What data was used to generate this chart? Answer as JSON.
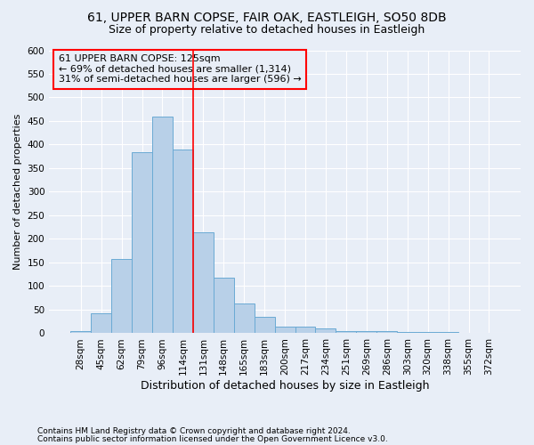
{
  "title": "61, UPPER BARN COPSE, FAIR OAK, EASTLEIGH, SO50 8DB",
  "subtitle": "Size of property relative to detached houses in Eastleigh",
  "xlabel": "Distribution of detached houses by size in Eastleigh",
  "ylabel": "Number of detached properties",
  "footnote1": "Contains HM Land Registry data © Crown copyright and database right 2024.",
  "footnote2": "Contains public sector information licensed under the Open Government Licence v3.0.",
  "annotation_line1": "61 UPPER BARN COPSE: 125sqm",
  "annotation_line2": "← 69% of detached houses are smaller (1,314)",
  "annotation_line3": "31% of semi-detached houses are larger (596) →",
  "bar_categories": [
    "28sqm",
    "45sqm",
    "62sqm",
    "79sqm",
    "96sqm",
    "114sqm",
    "131sqm",
    "148sqm",
    "165sqm",
    "183sqm",
    "200sqm",
    "217sqm",
    "234sqm",
    "251sqm",
    "269sqm",
    "286sqm",
    "303sqm",
    "320sqm",
    "338sqm",
    "355sqm",
    "372sqm"
  ],
  "bar_values": [
    5,
    42,
    158,
    384,
    460,
    390,
    215,
    118,
    63,
    35,
    15,
    15,
    10,
    5,
    5,
    5,
    2,
    2,
    2,
    1,
    1
  ],
  "bar_color": "#b8d0e8",
  "bar_edge_color": "#6aaad4",
  "vline_color": "red",
  "vline_pos": 5.5,
  "annotation_box_color": "red",
  "ylim": [
    0,
    600
  ],
  "yticks": [
    0,
    50,
    100,
    150,
    200,
    250,
    300,
    350,
    400,
    450,
    500,
    550,
    600
  ],
  "background_color": "#e8eef7",
  "grid_color": "#ffffff",
  "title_fontsize": 10,
  "subtitle_fontsize": 9,
  "ylabel_fontsize": 8,
  "xlabel_fontsize": 9,
  "annotation_fontsize": 8,
  "tick_fontsize": 7.5,
  "footnote_fontsize": 6.5
}
